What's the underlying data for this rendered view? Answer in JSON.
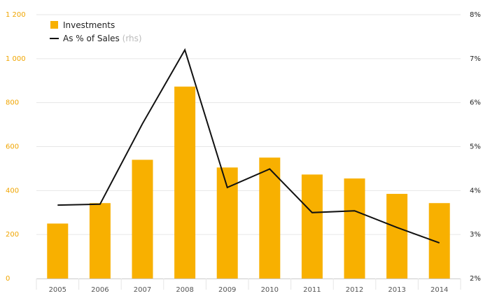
{
  "chart_data": {
    "type": "bar",
    "categories": [
      "2005",
      "2006",
      "2007",
      "2008",
      "2009",
      "2010",
      "2011",
      "2012",
      "2013",
      "2014"
    ],
    "series": [
      {
        "name": "Investments",
        "type": "bar",
        "axis": "left",
        "color": "#f8b000",
        "values": [
          250,
          343,
          540,
          873,
          505,
          550,
          473,
          455,
          385,
          343
        ]
      },
      {
        "name": "As % of Sales",
        "name_suffix": "(rhs)",
        "type": "line",
        "axis": "right",
        "color": "#111111",
        "values": [
          3.67,
          3.69,
          5.52,
          7.2,
          4.07,
          4.49,
          3.5,
          3.54,
          3.16,
          2.81
        ]
      }
    ],
    "y_left": {
      "ylim": [
        0,
        1200
      ],
      "ticks": [
        0,
        200,
        400,
        600,
        800,
        1000,
        1200
      ],
      "tick_labels": [
        "0",
        "200",
        "400",
        "600",
        "800",
        "1 000",
        "1 200"
      ]
    },
    "y_right": {
      "ylim": [
        2,
        8
      ],
      "ticks": [
        2,
        3,
        4,
        5,
        6,
        7,
        8
      ],
      "tick_labels": [
        "2%",
        "3%",
        "4%",
        "5%",
        "6%",
        "7%",
        "8%"
      ]
    },
    "title": "",
    "xlabel": "",
    "ylabel": "",
    "grid": true,
    "legend_position": "top-left",
    "colors": {
      "left_axis_text": "#f0a500",
      "right_axis_text": "#222222",
      "grid": "#e6e6e6",
      "axis_line": "#cccccc"
    }
  }
}
